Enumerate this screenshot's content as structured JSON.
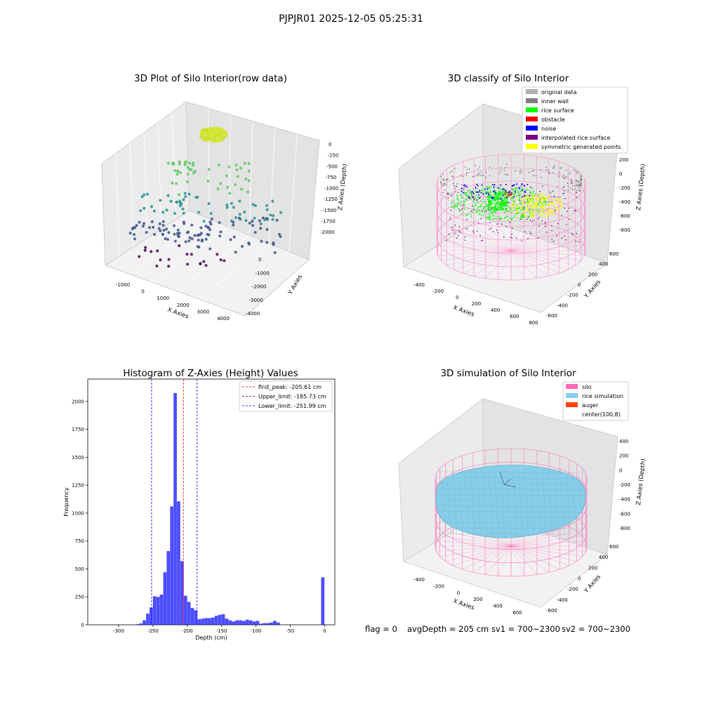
{
  "figure": {
    "suptitle": "PJPJR01 2025-12-05 05:25:31",
    "footer": {
      "flag": "flag = 0",
      "avg_depth": "avgDepth = 205 cm",
      "sv1": "sv1 = 700~2300",
      "sv2": "sv2 = 700~2300"
    }
  },
  "panel_raw": {
    "title": "3D Plot of Silo Interior(row data)",
    "xlabel": "X Axies",
    "ylabel": "Y Axies",
    "zlabel": "Z Axies (Depth)",
    "x_ticks": [
      "-1000",
      "0",
      "1000",
      "2000",
      "3000",
      "4000"
    ],
    "y_ticks": [
      "0",
      "-1000",
      "-2000",
      "-3000",
      "-4000"
    ],
    "z_ticks": [
      "0",
      "-250",
      "-500",
      "-750",
      "-1000",
      "-1250",
      "-1500",
      "-1750",
      "-2000"
    ],
    "colormap": [
      "#440154",
      "#3b528b",
      "#21918c",
      "#5ec962",
      "#fde725"
    ]
  },
  "panel_classify": {
    "title": "3D classify of Silo Interior",
    "xlabel": "X Axies",
    "ylabel": "Y Axies",
    "zlabel": "Z Axies (Depth)",
    "x_ticks": [
      "-400",
      "-200",
      "0",
      "200",
      "400",
      "600",
      "800"
    ],
    "y_ticks": [
      "600",
      "400",
      "200",
      "0",
      "-200",
      "-400",
      "-600"
    ],
    "z_ticks": [
      "200",
      "0",
      "-200",
      "-400",
      "-600",
      "-800"
    ],
    "legend": [
      {
        "label": "original data",
        "color": "#b0b0b0"
      },
      {
        "label": "inner wall",
        "color": "#808080"
      },
      {
        "label": "rice surface",
        "color": "#00ff00"
      },
      {
        "label": "obstacle",
        "color": "#ff0000"
      },
      {
        "label": "noise",
        "color": "#0000ff"
      },
      {
        "label": "interpolated rice surface",
        "color": "#800080"
      },
      {
        "label": "symmetric generated points",
        "color": "#ffff00"
      }
    ]
  },
  "panel_sim": {
    "title": "3D simulation of Silo Interior",
    "xlabel": "X Axies",
    "ylabel": "Y Axies",
    "zlabel": "Z Axies (Depth)",
    "x_ticks": [
      "-400",
      "-200",
      "0",
      "200",
      "400",
      "600"
    ],
    "y_ticks": [
      "600",
      "400",
      "200",
      "0",
      "-200",
      "-400",
      "-600"
    ],
    "z_ticks": [
      "400",
      "200",
      "0",
      "-200",
      "-400",
      "-600",
      "-800"
    ],
    "legend": [
      {
        "label": "silo",
        "color": "#ff69b4"
      },
      {
        "label": "rice simulation",
        "color": "#87ceeb"
      },
      {
        "label": "auger",
        "color": "#ff4500"
      },
      {
        "label": "center(100,8)",
        "color": ""
      }
    ]
  },
  "chart_data": {
    "type": "bar",
    "title": "Histogram of Z-Axies (Height) Values",
    "xlabel": "Depth (cm)",
    "ylabel": "Frequency",
    "xlim": [
      -345,
      15
    ],
    "ylim": [
      0,
      2200
    ],
    "x_ticks": [
      -300,
      -250,
      -200,
      -150,
      -100,
      -50,
      0
    ],
    "y_ticks": [
      0,
      250,
      500,
      750,
      1000,
      1250,
      1500,
      1750,
      2000
    ],
    "bar_color": "#0000ff",
    "bin_width": 5,
    "bins": [
      {
        "x": -280,
        "value": 2
      },
      {
        "x": -275,
        "value": 5
      },
      {
        "x": -270,
        "value": 12
      },
      {
        "x": -265,
        "value": 40
      },
      {
        "x": -260,
        "value": 100
      },
      {
        "x": -255,
        "value": 155
      },
      {
        "x": -250,
        "value": 255
      },
      {
        "x": -245,
        "value": 250
      },
      {
        "x": -240,
        "value": 270
      },
      {
        "x": -235,
        "value": 470
      },
      {
        "x": -230,
        "value": 660
      },
      {
        "x": -225,
        "value": 1060
      },
      {
        "x": -220,
        "value": 2075
      },
      {
        "x": -215,
        "value": 1105
      },
      {
        "x": -210,
        "value": 570
      },
      {
        "x": -205,
        "value": 260
      },
      {
        "x": -200,
        "value": 205
      },
      {
        "x": -195,
        "value": 150
      },
      {
        "x": -190,
        "value": 130
      },
      {
        "x": -185,
        "value": 50
      },
      {
        "x": -180,
        "value": 55
      },
      {
        "x": -175,
        "value": 60
      },
      {
        "x": -170,
        "value": 60
      },
      {
        "x": -165,
        "value": 65
      },
      {
        "x": -160,
        "value": 80
      },
      {
        "x": -155,
        "value": 90
      },
      {
        "x": -150,
        "value": 95
      },
      {
        "x": -145,
        "value": 55
      },
      {
        "x": -140,
        "value": 40
      },
      {
        "x": -135,
        "value": 30
      },
      {
        "x": -130,
        "value": 40
      },
      {
        "x": -125,
        "value": 40
      },
      {
        "x": -120,
        "value": 35
      },
      {
        "x": -115,
        "value": 45
      },
      {
        "x": -110,
        "value": 40
      },
      {
        "x": -105,
        "value": 30
      },
      {
        "x": -100,
        "value": 35
      },
      {
        "x": -95,
        "value": 10
      },
      {
        "x": -90,
        "value": 15
      },
      {
        "x": -85,
        "value": 15
      },
      {
        "x": -80,
        "value": 20
      },
      {
        "x": -75,
        "value": 35
      },
      {
        "x": -70,
        "value": 20
      },
      {
        "x": -5,
        "value": 425
      }
    ],
    "vlines": [
      {
        "label": "first_peak: -205.61 cm",
        "x": -205.61,
        "color": "#ff0000"
      },
      {
        "label": "Upper_limit: -185.73 cm",
        "x": -185.73,
        "color": "#0000ff"
      },
      {
        "label": "Lower_limit: -251.99 cm",
        "x": -251.99,
        "color": "#0000ff"
      }
    ]
  }
}
